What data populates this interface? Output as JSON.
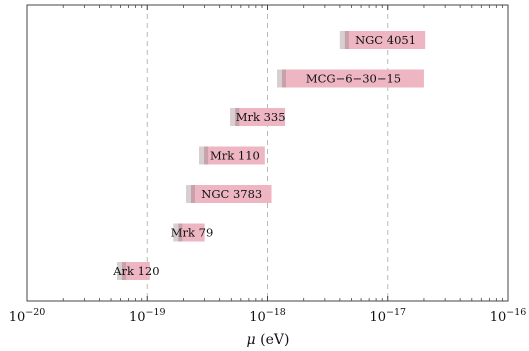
{
  "chart_data": {
    "type": "range-bar",
    "xscale": "log",
    "xlim": [
      1e-20,
      1e-16
    ],
    "xlabel_symbol": "μ",
    "xlabel_unit": " (eV)",
    "xticks": [
      {
        "value": 1e-20,
        "base": "10",
        "exp": "−20"
      },
      {
        "value": 1e-19,
        "base": "10",
        "exp": "−19"
      },
      {
        "value": 1e-18,
        "base": "10",
        "exp": "−18"
      },
      {
        "value": 1e-17,
        "base": "10",
        "exp": "−17"
      },
      {
        "value": 1e-16,
        "base": "10",
        "exp": "−16"
      }
    ],
    "grid": {
      "vertical": true,
      "style": "dashed",
      "at": [
        1e-19,
        1e-18,
        1e-17
      ]
    },
    "colors": {
      "bar_main": "#eeb6c3",
      "bar_edge_dark": "#c9a1aa",
      "bar_edge_light": "#d7d0d2",
      "grid": "#b9b9b9",
      "frame": "#444444"
    },
    "series": [
      {
        "label": "NGC 4051",
        "low": 4e-18,
        "high": 2.05e-17
      },
      {
        "label": "MCG−6−30−15",
        "low": 1.2e-18,
        "high": 2e-17
      },
      {
        "label": "Mrk 335",
        "low": 4.9e-19,
        "high": 1.4e-18
      },
      {
        "label": "Mrk 110",
        "low": 2.7e-19,
        "high": 9.5e-19
      },
      {
        "label": "NGC 3783",
        "low": 2.1e-19,
        "high": 1.08e-18
      },
      {
        "label": "Mrk 79",
        "low": 1.65e-19,
        "high": 3e-19
      },
      {
        "label": "Ark 120",
        "low": 5.6e-20,
        "high": 1.05e-19
      }
    ]
  }
}
